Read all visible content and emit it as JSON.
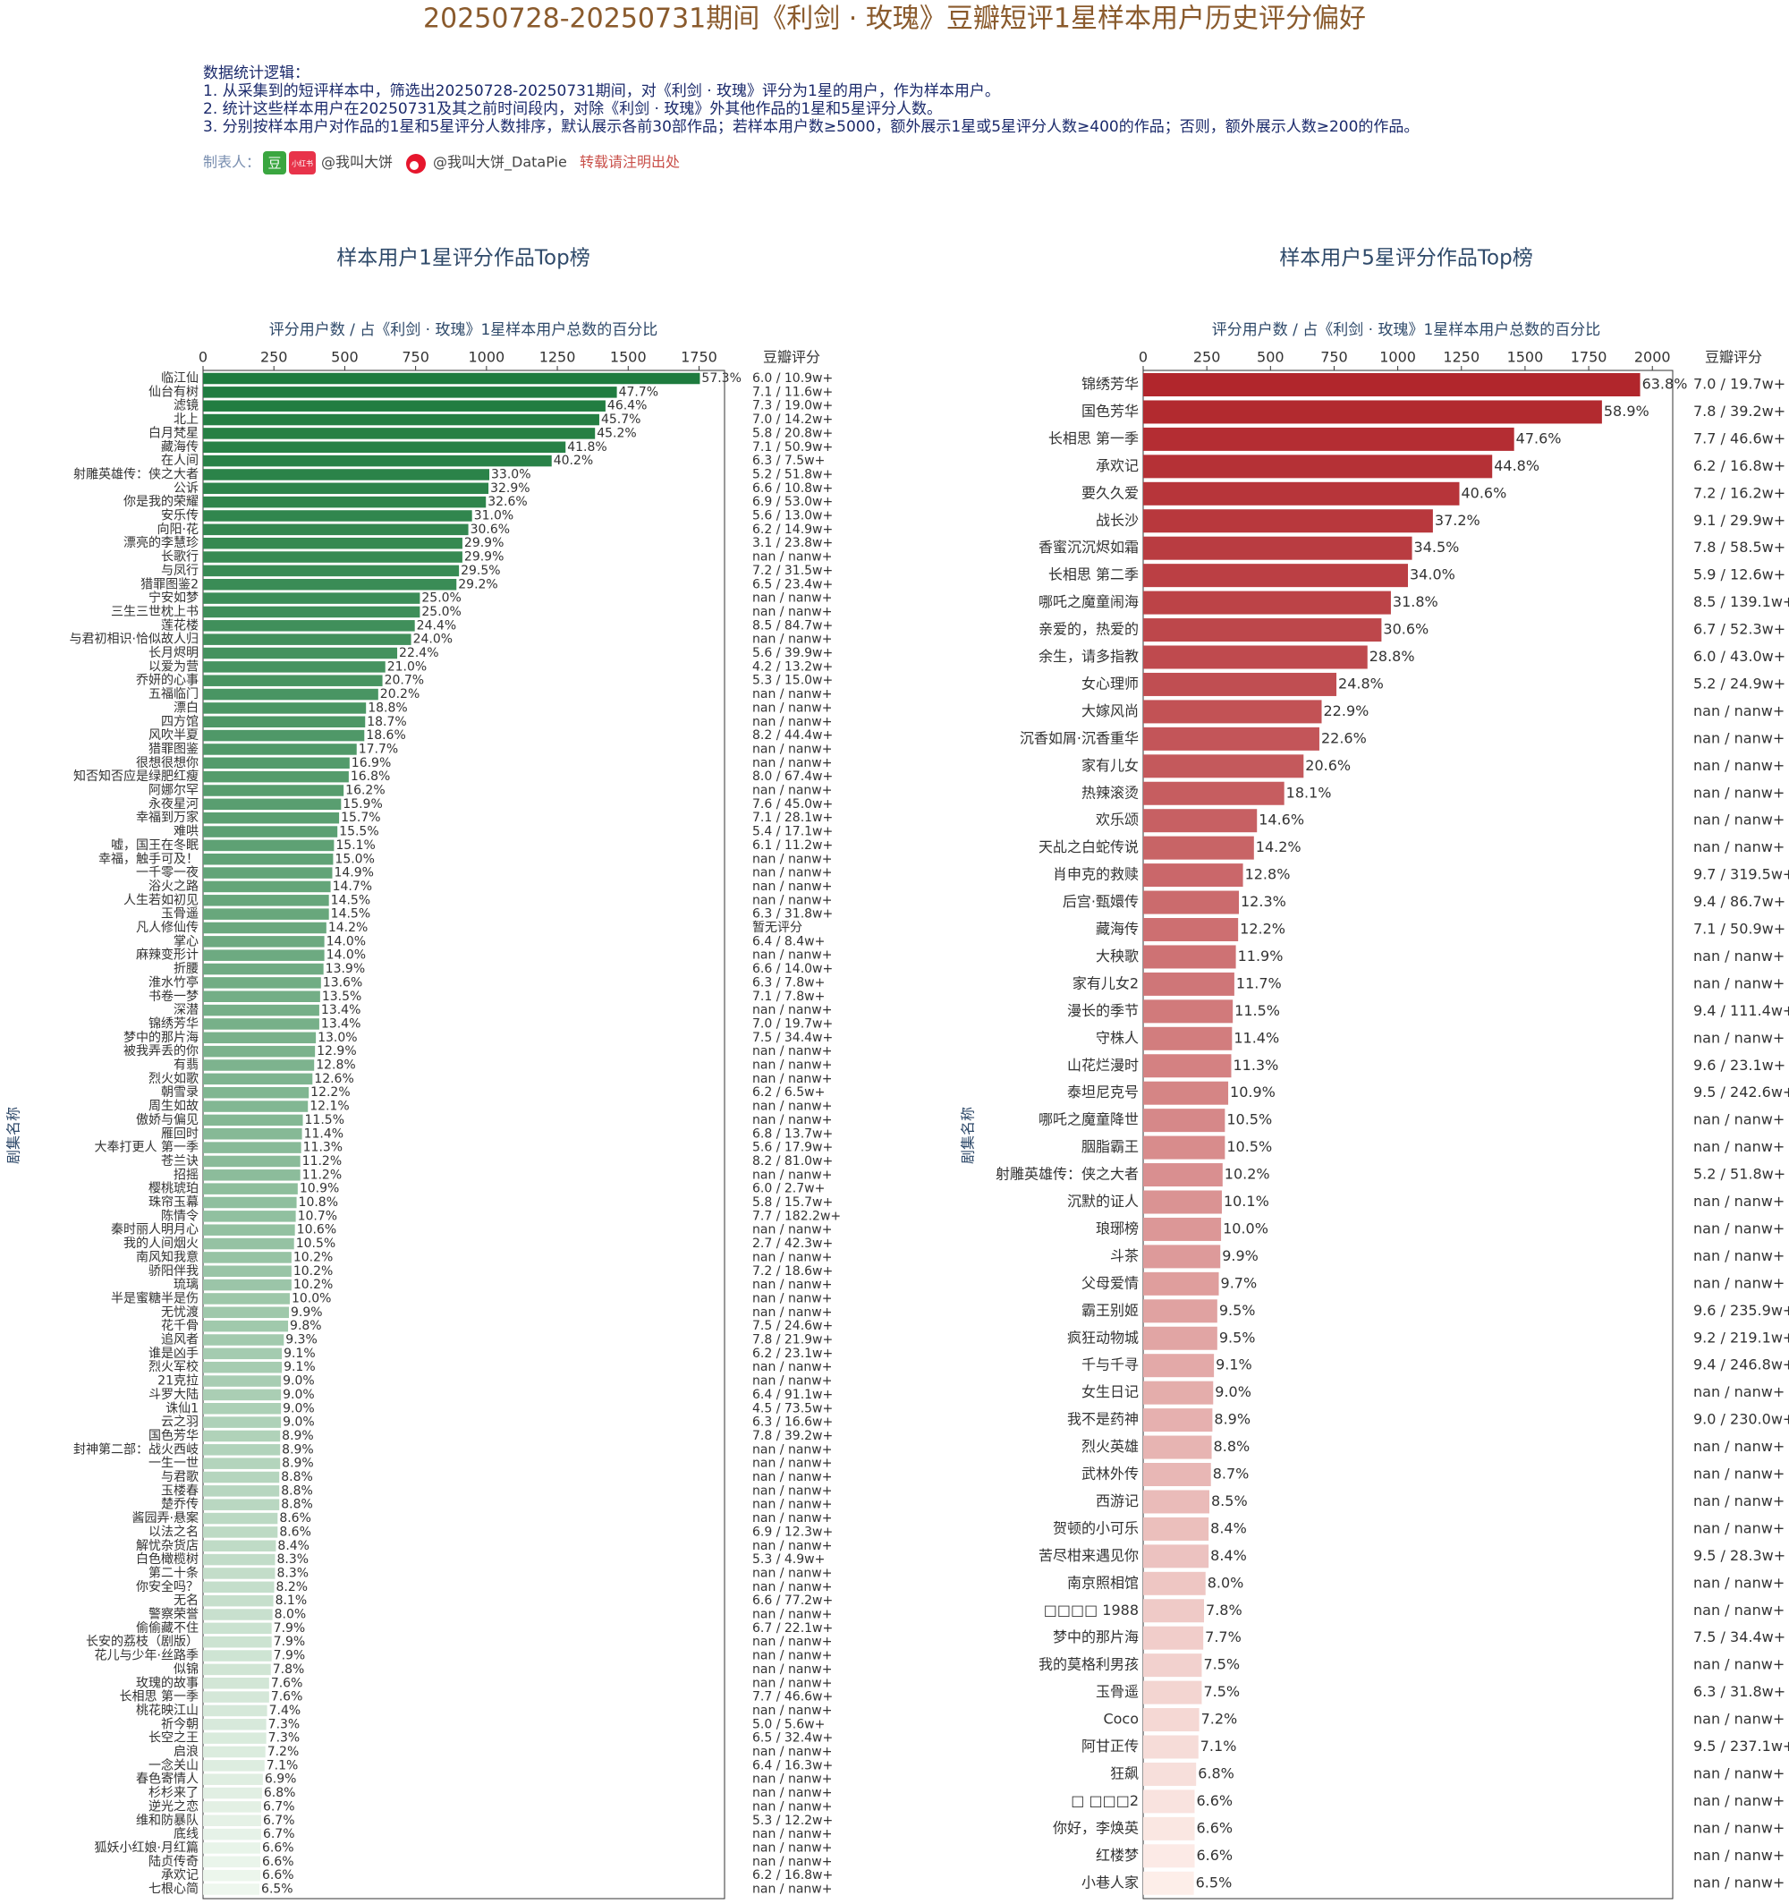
{
  "title": "20250728-20250731期间《利剑 · 玫瑰》豆瓣短评1星样本用户历史评分偏好",
  "notes": {
    "heading": "数据统计逻辑：",
    "lines": [
      "1. 从采集到的短评样本中，筛选出20250728-20250731期间，对《利剑 · 玫瑰》评分为1星的用户，作为样本用户。",
      "2. 统计这些样本用户在20250731及其之前时间段内，对除《利剑 · 玫瑰》外其他作品的1星和5星评分人数。",
      "3. 分别按样本用户对作品的1星和5星评分人数排序，默认展示各前30部作品；若样本用户数≥5000，额外展示1星或5星评分人数≥400的作品；否则，额外展示人数≥200的作品。"
    ]
  },
  "credit": {
    "label": "制表人：",
    "douban": "豆",
    "xhs": "小红书",
    "xhs_name": "@我叫大饼",
    "weibo_name": "@我叫大饼_DataPie",
    "notice": "转载请注明出处"
  },
  "chart_data": [
    {
      "type": "bar",
      "orientation": "horizontal",
      "title": "样本用户1星评分作品Top榜",
      "xlabel": "评分用户数 / 占《利剑 · 玫瑰》1星样本用户总数的百分比",
      "ylabel": "剧集名称",
      "score_header": "豆瓣评分",
      "color_range": [
        "#1e7b3e",
        "#eef7ee"
      ],
      "xlim": [
        0,
        1840
      ],
      "xticks": [
        0,
        250,
        500,
        750,
        1000,
        1250,
        1500,
        1750
      ],
      "categories": [
        "临江仙",
        "仙台有树",
        "滤镜",
        "北上",
        "白月梵星",
        "藏海传",
        "在人间",
        "射雕英雄传：侠之大者",
        "公诉",
        "你是我的荣耀",
        "安乐传",
        "向阳·花",
        "漂亮的李慧珍",
        "长歌行",
        "与凤行",
        "猎罪图鉴2",
        "宁安如梦",
        "三生三世枕上书",
        "莲花楼",
        "与君初相识·恰似故人归",
        "长月烬明",
        "以爱为营",
        "乔妍的心事",
        "五福临门",
        "漂白",
        "四方馆",
        "风吹半夏",
        "猎罪图鉴",
        "很想很想你",
        "知否知否应是绿肥红瘦",
        "阿娜尔罕",
        "永夜星河",
        "幸福到万家",
        "难哄",
        "嘘，国王在冬眠",
        "幸福，触手可及！",
        "一千零一夜",
        "浴火之路",
        "人生若如初见",
        "玉骨遥",
        "凡人修仙传",
        "掌心",
        "麻辣变形计",
        "折腰",
        "淮水竹亭",
        "书卷一梦",
        "深潜",
        "锦绣芳华",
        "梦中的那片海",
        "被我弄丢的你",
        "有翡",
        "烈火如歌",
        "朝雪录",
        "周生如故",
        "傲娇与偏见",
        "雁回时",
        "大奉打更人 第一季",
        "苍兰诀",
        "招摇",
        "樱桃琥珀",
        "珠帘玉幕",
        "陈情令",
        "秦时丽人明月心",
        "我的人间烟火",
        "南风知我意",
        "骄阳伴我",
        "琉璃",
        "半是蜜糖半是伤",
        "无忧渡",
        "花千骨",
        "追风者",
        "谁是凶手",
        "烈火军校",
        "21克拉",
        "斗罗大陆",
        "诛仙1",
        "云之羽",
        "国色芳华",
        "封神第二部：战火西岐",
        "一生一世",
        "与君歌",
        "玉楼春",
        "楚乔传",
        "酱园弄·悬案",
        "以法之名",
        "解忧杂货店",
        "白色橄榄树",
        "第二十条",
        "你安全吗？",
        "无名",
        "警察荣誉",
        "偷偷藏不住",
        "长安的荔枝（剧版）",
        "花儿与少年·丝路季",
        "似锦",
        "玫瑰的故事",
        "长相思 第一季",
        "桃花映江山",
        "祈今朝",
        "长空之王",
        "启浪",
        "一念关山",
        "春色寄情人",
        "杉杉来了",
        "逆光之恋",
        "维和防暴队",
        "底线",
        "狐妖小红娘·月红篇",
        "陆贞传奇",
        "承欢记",
        "七根心简"
      ],
      "values": [
        1753,
        1460,
        1420,
        1398,
        1383,
        1279,
        1230,
        1010,
        1007,
        998,
        949,
        936,
        915,
        915,
        903,
        894,
        765,
        765,
        747,
        734,
        685,
        643,
        633,
        618,
        575,
        572,
        569,
        542,
        517,
        514,
        496,
        487,
        480,
        474,
        462,
        459,
        456,
        450,
        444,
        444,
        435,
        428,
        428,
        425,
        416,
        413,
        410,
        410,
        398,
        395,
        392,
        386,
        373,
        370,
        352,
        349,
        346,
        343,
        343,
        334,
        330,
        327,
        324,
        321,
        312,
        312,
        312,
        306,
        303,
        300,
        285,
        278,
        278,
        275,
        275,
        275,
        275,
        272,
        272,
        272,
        269,
        269,
        269,
        263,
        263,
        257,
        254,
        254,
        251,
        248,
        245,
        242,
        242,
        242,
        239,
        233,
        233,
        226,
        223,
        223,
        220,
        217,
        211,
        208,
        205,
        205,
        205,
        202,
        202,
        202,
        199
      ],
      "value_labels": [
        "57.3%",
        "47.7%",
        "46.4%",
        "45.7%",
        "45.2%",
        "41.8%",
        "40.2%",
        "33.0%",
        "32.9%",
        "32.6%",
        "31.0%",
        "30.6%",
        "29.9%",
        "29.9%",
        "29.5%",
        "29.2%",
        "25.0%",
        "25.0%",
        "24.4%",
        "24.0%",
        "22.4%",
        "21.0%",
        "20.7%",
        "20.2%",
        "18.8%",
        "18.7%",
        "18.6%",
        "17.7%",
        "16.9%",
        "16.8%",
        "16.2%",
        "15.9%",
        "15.7%",
        "15.5%",
        "15.1%",
        "15.0%",
        "14.9%",
        "14.7%",
        "14.5%",
        "14.5%",
        "14.2%",
        "14.0%",
        "14.0%",
        "13.9%",
        "13.6%",
        "13.5%",
        "13.4%",
        "13.4%",
        "13.0%",
        "12.9%",
        "12.8%",
        "12.6%",
        "12.2%",
        "12.1%",
        "11.5%",
        "11.4%",
        "11.3%",
        "11.2%",
        "11.2%",
        "10.9%",
        "10.8%",
        "10.7%",
        "10.6%",
        "10.5%",
        "10.2%",
        "10.2%",
        "10.2%",
        "10.0%",
        "9.9%",
        "9.8%",
        "9.3%",
        "9.1%",
        "9.1%",
        "9.0%",
        "9.0%",
        "9.0%",
        "9.0%",
        "8.9%",
        "8.9%",
        "8.9%",
        "8.8%",
        "8.8%",
        "8.8%",
        "8.6%",
        "8.6%",
        "8.4%",
        "8.3%",
        "8.3%",
        "8.2%",
        "8.1%",
        "8.0%",
        "7.9%",
        "7.9%",
        "7.9%",
        "7.8%",
        "7.6%",
        "7.6%",
        "7.4%",
        "7.3%",
        "7.3%",
        "7.2%",
        "7.1%",
        "6.9%",
        "6.8%",
        "6.7%",
        "6.7%",
        "6.7%",
        "6.6%",
        "6.6%",
        "6.6%",
        "6.5%"
      ],
      "scores": [
        "6.0 / 10.9w+",
        "7.1 / 11.6w+",
        "7.3 / 19.0w+",
        "7.0 / 14.2w+",
        "5.8 / 20.8w+",
        "7.1 / 50.9w+",
        "6.3 / 7.5w+",
        "5.2 / 51.8w+",
        "6.6 / 10.8w+",
        "6.9 / 53.0w+",
        "5.6 / 13.0w+",
        "6.2 / 14.9w+",
        "3.1 / 23.8w+",
        "nan / nanw+",
        "7.2 / 31.5w+",
        "6.5 / 23.4w+",
        "nan / nanw+",
        "nan / nanw+",
        "8.5 / 84.7w+",
        "nan / nanw+",
        "5.6 / 39.9w+",
        "4.2 / 13.2w+",
        "5.3 / 15.0w+",
        "nan / nanw+",
        "nan / nanw+",
        "nan / nanw+",
        "8.2 / 44.4w+",
        "nan / nanw+",
        "nan / nanw+",
        "8.0 / 67.4w+",
        "nan / nanw+",
        "7.6 / 45.0w+",
        "7.1 / 28.1w+",
        "5.4 / 17.1w+",
        "6.1 / 11.2w+",
        "nan / nanw+",
        "nan / nanw+",
        "nan / nanw+",
        "nan / nanw+",
        "6.3 / 31.8w+",
        "暂无评分",
        "6.4 / 8.4w+",
        "nan / nanw+",
        "6.6 / 14.0w+",
        "6.3 / 7.8w+",
        "7.1 / 7.8w+",
        "nan / nanw+",
        "7.0 / 19.7w+",
        "7.5 / 34.4w+",
        "nan / nanw+",
        "nan / nanw+",
        "nan / nanw+",
        "6.2 / 6.5w+",
        "nan / nanw+",
        "nan / nanw+",
        "6.8 / 13.7w+",
        "5.6 / 17.9w+",
        "8.2 / 81.0w+",
        "nan / nanw+",
        "6.0 / 2.7w+",
        "5.8 / 15.7w+",
        "7.7 / 182.2w+",
        "nan / nanw+",
        "2.7 / 42.3w+",
        "nan / nanw+",
        "7.2 / 18.6w+",
        "nan / nanw+",
        "nan / nanw+",
        "nan / nanw+",
        "7.5 / 24.6w+",
        "7.8 / 21.9w+",
        "6.2 / 23.1w+",
        "nan / nanw+",
        "nan / nanw+",
        "6.4 / 91.1w+",
        "4.5 / 73.5w+",
        "6.3 / 16.6w+",
        "7.8 / 39.2w+",
        "nan / nanw+",
        "nan / nanw+",
        "nan / nanw+",
        "nan / nanw+",
        "nan / nanw+",
        "nan / nanw+",
        "6.9 / 12.3w+",
        "nan / nanw+",
        "5.3 / 4.9w+",
        "nan / nanw+",
        "nan / nanw+",
        "6.6 / 77.2w+",
        "nan / nanw+",
        "6.7 / 22.1w+",
        "nan / nanw+",
        "nan / nanw+",
        "nan / nanw+",
        "nan / nanw+",
        "7.7 / 46.6w+",
        "nan / nanw+",
        "5.0 / 5.6w+",
        "6.5 / 32.4w+",
        "nan / nanw+",
        "6.4 / 16.3w+",
        "nan / nanw+",
        "nan / nanw+",
        "nan / nanw+",
        "5.3 / 12.2w+",
        "nan / nanw+",
        "nan / nanw+",
        "nan / nanw+",
        "6.2 / 16.8w+",
        "nan / nanw+"
      ]
    },
    {
      "type": "bar",
      "orientation": "horizontal",
      "title": "样本用户5星评分作品Top榜",
      "xlabel": "评分用户数 / 占《利剑 · 玫瑰》1星样本用户总数的百分比",
      "ylabel": "剧集名称",
      "score_header": "豆瓣评分",
      "color_range": [
        "#b1262c",
        "#fdeee9"
      ],
      "xlim": [
        0,
        2080
      ],
      "xticks": [
        0,
        250,
        500,
        750,
        1000,
        1250,
        1500,
        1750,
        2000
      ],
      "categories": [
        "锦绣芳华",
        "国色芳华",
        "长相思 第一季",
        "承欢记",
        "要久久爱",
        "战长沙",
        "香蜜沉沉烬如霜",
        "长相思 第二季",
        "哪吒之魔童闹海",
        "亲爱的，热爱的",
        "余生，请多指教",
        "女心理师",
        "大嫁风尚",
        "沉香如屑·沉香重华",
        "家有儿女",
        "热辣滚烫",
        "欢乐颂",
        "天乩之白蛇传说",
        "肖申克的救赎",
        "后宫·甄嬛传",
        "藏海传",
        "大秧歌",
        "家有儿女2",
        "漫长的季节",
        "守株人",
        "山花烂漫时",
        "泰坦尼克号",
        "哪吒之魔童降世",
        "胭脂霸王",
        "射雕英雄传：侠之大者",
        "沉默的证人",
        "琅琊榜",
        "斗茶",
        "父母爱情",
        "霸王别姬",
        "疯狂动物城",
        "千与千寻",
        "女生日记",
        "我不是药神",
        "烈火英雄",
        "武林外传",
        "西游记",
        "贺顿的小可乐",
        "苦尽柑来遇见你",
        "南京照相馆",
        "□□□□ 1988",
        "梦中的那片海",
        "我的莫格利男孩",
        "玉骨遥",
        "Coco",
        "阿甘正传",
        "狂飙",
        "□ □□□2",
        "你好，李焕英",
        "红楼梦",
        "小巷人家"
      ],
      "values": [
        1952,
        1802,
        1457,
        1371,
        1242,
        1138,
        1056,
        1040,
        973,
        936,
        881,
        759,
        701,
        692,
        630,
        554,
        447,
        435,
        392,
        376,
        373,
        364,
        358,
        352,
        349,
        346,
        334,
        321,
        321,
        312,
        309,
        306,
        303,
        297,
        291,
        291,
        278,
        275,
        272,
        269,
        266,
        260,
        257,
        257,
        245,
        239,
        236,
        230,
        230,
        220,
        217,
        208,
        202,
        202,
        202,
        199
      ],
      "value_labels": [
        "63.8%",
        "58.9%",
        "47.6%",
        "44.8%",
        "40.6%",
        "37.2%",
        "34.5%",
        "34.0%",
        "31.8%",
        "30.6%",
        "28.8%",
        "24.8%",
        "22.9%",
        "22.6%",
        "20.6%",
        "18.1%",
        "14.6%",
        "14.2%",
        "12.8%",
        "12.3%",
        "12.2%",
        "11.9%",
        "11.7%",
        "11.5%",
        "11.4%",
        "11.3%",
        "10.9%",
        "10.5%",
        "10.5%",
        "10.2%",
        "10.1%",
        "10.0%",
        "9.9%",
        "9.7%",
        "9.5%",
        "9.5%",
        "9.1%",
        "9.0%",
        "8.9%",
        "8.8%",
        "8.7%",
        "8.5%",
        "8.4%",
        "8.4%",
        "8.0%",
        "7.8%",
        "7.7%",
        "7.5%",
        "7.5%",
        "7.2%",
        "7.1%",
        "6.8%",
        "6.6%",
        "6.6%",
        "6.6%",
        "6.5%"
      ],
      "scores": [
        "7.0 / 19.7w+",
        "7.8 / 39.2w+",
        "7.7 / 46.6w+",
        "6.2 / 16.8w+",
        "7.2 / 16.2w+",
        "9.1 / 29.9w+",
        "7.8 / 58.5w+",
        "5.9 / 12.6w+",
        "8.5 / 139.1w+",
        "6.7 / 52.3w+",
        "6.0 / 43.0w+",
        "5.2 / 24.9w+",
        "nan / nanw+",
        "nan / nanw+",
        "nan / nanw+",
        "nan / nanw+",
        "nan / nanw+",
        "nan / nanw+",
        "9.7 / 319.5w+",
        "9.4 / 86.7w+",
        "7.1 / 50.9w+",
        "nan / nanw+",
        "nan / nanw+",
        "9.4 / 111.4w+",
        "nan / nanw+",
        "9.6 / 23.1w+",
        "9.5 / 242.6w+",
        "nan / nanw+",
        "nan / nanw+",
        "5.2 / 51.8w+",
        "nan / nanw+",
        "nan / nanw+",
        "nan / nanw+",
        "nan / nanw+",
        "9.6 / 235.9w+",
        "9.2 / 219.1w+",
        "9.4 / 246.8w+",
        "nan / nanw+",
        "9.0 / 230.0w+",
        "nan / nanw+",
        "nan / nanw+",
        "nan / nanw+",
        "nan / nanw+",
        "9.5 / 28.3w+",
        "nan / nanw+",
        "nan / nanw+",
        "7.5 / 34.4w+",
        "nan / nanw+",
        "6.3 / 31.8w+",
        "nan / nanw+",
        "9.5 / 237.1w+",
        "nan / nanw+",
        "nan / nanw+",
        "nan / nanw+",
        "nan / nanw+",
        "nan / nanw+"
      ]
    }
  ]
}
